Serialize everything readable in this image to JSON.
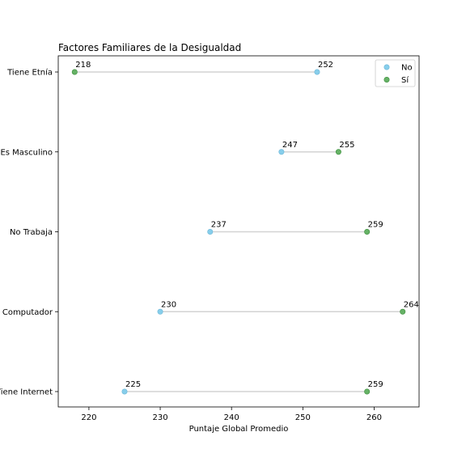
{
  "chart_data": {
    "type": "dumbbell",
    "title": "Factores Familiares de la Desigualdad",
    "xlabel": "Puntaje Global Promedio",
    "ylabel": "",
    "xlim": [
      215.7,
      266.3
    ],
    "xticks": [
      220,
      230,
      240,
      250,
      260
    ],
    "grid": false,
    "legend_position": "top-right",
    "categories": [
      "Tiene Etnía",
      "Es Masculino",
      "No Trabaja",
      "Computador",
      "Tiene Internet"
    ],
    "series": [
      {
        "name": "No",
        "color": "#87ceeb",
        "values": [
          252,
          247,
          237,
          230,
          225
        ]
      },
      {
        "name": "Sí",
        "color": "#66b266",
        "values": [
          218,
          255,
          259,
          264,
          259
        ]
      }
    ],
    "connector_color": "#d3d3d3"
  }
}
